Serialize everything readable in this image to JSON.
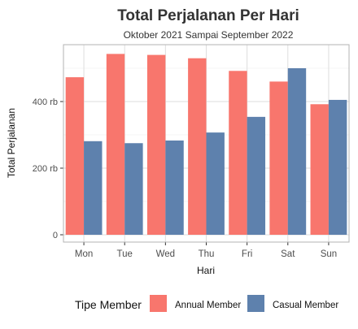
{
  "chart_data": {
    "type": "bar",
    "title": "Total Perjalanan Per Hari",
    "subtitle": "Oktober 2021 Sampai September 2022",
    "xlabel": "Hari",
    "ylabel": "Total Perjalanan",
    "categories": [
      "Mon",
      "Tue",
      "Wed",
      "Thu",
      "Fri",
      "Sat",
      "Sun"
    ],
    "series": [
      {
        "name": "Annual Member",
        "color": "#F8766D",
        "values": [
          473,
          543,
          540,
          530,
          492,
          460,
          392
        ]
      },
      {
        "name": "Casual Member",
        "color": "#5E81AD",
        "values": [
          281,
          275,
          283,
          307,
          354,
          500,
          405
        ]
      }
    ],
    "ylim": [
      0,
      550
    ],
    "yticks": [
      {
        "value": 0,
        "label": "0"
      },
      {
        "value": 200,
        "label": "200 rb"
      },
      {
        "value": 400,
        "label": "400 rb"
      }
    ],
    "grid": true,
    "legend": {
      "title": "Tipe Member",
      "position": "bottom"
    }
  }
}
